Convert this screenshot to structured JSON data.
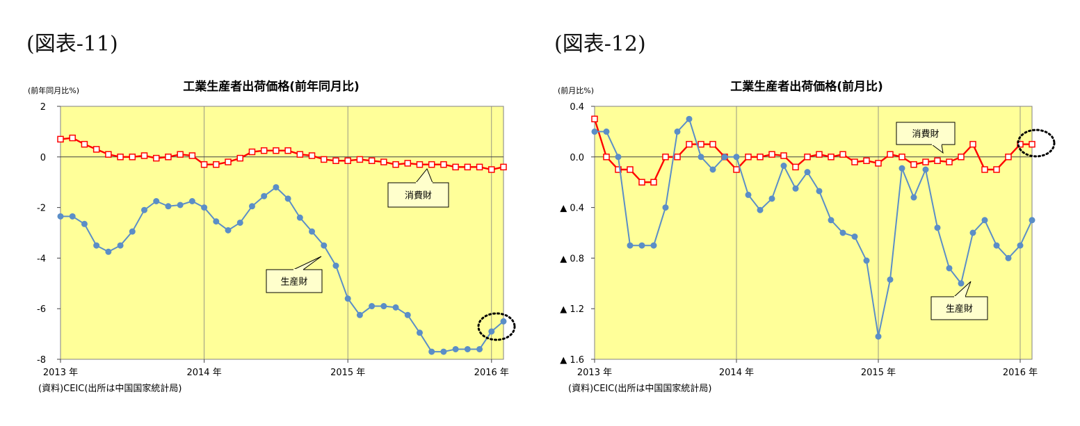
{
  "colors": {
    "plot_bg": "#ffff99",
    "consumer_line": "#ff0000",
    "producer_line": "#5b8ec7",
    "gridline": "#808080",
    "callout_bg": "#ffffcc"
  },
  "chart_data": [
    {
      "type": "line",
      "heading": "(図表-11)",
      "title": "工業生産者出荷価格(前年同月比)",
      "ylabel": "(前年同月比%)",
      "source": "(資料)CEIC(出所は中国国家統計局)",
      "ylim": [
        -8,
        2
      ],
      "yticks": [
        2,
        0,
        -2,
        -4,
        -6,
        -8
      ],
      "ytick_labels": [
        "2",
        "0",
        "-2",
        "-4",
        "-6",
        "-8"
      ],
      "x_ticks": [
        "2013 年",
        "2014 年",
        "2015 年",
        "2016 年"
      ],
      "series": [
        {
          "name": "消費財",
          "marker": "square",
          "values": [
            0.7,
            0.75,
            0.5,
            0.3,
            0.1,
            0.0,
            0.0,
            0.05,
            -0.05,
            0.0,
            0.1,
            0.05,
            -0.3,
            -0.3,
            -0.2,
            -0.05,
            0.2,
            0.25,
            0.25,
            0.25,
            0.1,
            0.05,
            -0.1,
            -0.15,
            -0.15,
            -0.1,
            -0.15,
            -0.2,
            -0.3,
            -0.25,
            -0.3,
            -0.3,
            -0.3,
            -0.4,
            -0.4,
            -0.4,
            -0.5,
            -0.4
          ]
        },
        {
          "name": "生産財",
          "marker": "circle",
          "values": [
            -2.35,
            -2.35,
            -2.65,
            -3.5,
            -3.75,
            -3.5,
            -2.95,
            -2.1,
            -1.75,
            -1.95,
            -1.9,
            -1.75,
            -2.0,
            -2.55,
            -2.9,
            -2.6,
            -1.95,
            -1.55,
            -1.2,
            -1.65,
            -2.4,
            -2.95,
            -3.5,
            -4.3,
            -5.6,
            -6.25,
            -5.9,
            -5.9,
            -5.95,
            -6.25,
            -6.95,
            -7.7,
            -7.7,
            -7.6,
            -7.6,
            -7.6,
            -6.9,
            -6.5
          ]
        }
      ],
      "callouts": [
        "消費財",
        "生産財"
      ]
    },
    {
      "type": "line",
      "heading": "(図表-12)",
      "title": "工業生産者出荷価格(前月比)",
      "ylabel": "(前月比%)",
      "source": "(資料)CEIC(出所は中国国家統計局)",
      "ylim": [
        -1.6,
        0.4
      ],
      "yticks": [
        0.4,
        0.0,
        -0.4,
        -0.8,
        -1.2,
        -1.6
      ],
      "ytick_labels": [
        "0.4",
        "0.0",
        "▲ 0.4",
        "▲ 0.8",
        "▲ 1.2",
        "▲ 1.6"
      ],
      "x_ticks": [
        "2013 年",
        "2014 年",
        "2015 年",
        "2016 年"
      ],
      "series": [
        {
          "name": "消費財",
          "marker": "square",
          "values": [
            0.3,
            0.0,
            -0.1,
            -0.1,
            -0.2,
            -0.2,
            0.0,
            0.0,
            0.1,
            0.1,
            0.1,
            0.0,
            -0.1,
            0.0,
            0.0,
            0.02,
            0.01,
            -0.08,
            0.0,
            0.02,
            0.0,
            0.02,
            -0.04,
            -0.03,
            -0.05,
            0.02,
            0.0,
            -0.06,
            -0.04,
            -0.03,
            -0.04,
            0.0,
            0.1,
            -0.1,
            -0.1,
            0.0,
            0.1,
            0.1
          ]
        },
        {
          "name": "生産財",
          "marker": "circle",
          "values": [
            0.2,
            0.2,
            0.0,
            -0.7,
            -0.7,
            -0.7,
            -0.4,
            0.2,
            0.3,
            0.0,
            -0.1,
            0.0,
            0.0,
            -0.3,
            -0.42,
            -0.33,
            -0.07,
            -0.25,
            -0.12,
            -0.27,
            -0.5,
            -0.6,
            -0.63,
            -0.82,
            -1.42,
            -0.97,
            -0.09,
            -0.32,
            -0.1,
            -0.56,
            -0.88,
            -1.0,
            -0.6,
            -0.5,
            -0.7,
            -0.8,
            -0.7,
            -0.5
          ]
        }
      ],
      "callouts": [
        "消費財",
        "生産財"
      ]
    }
  ]
}
